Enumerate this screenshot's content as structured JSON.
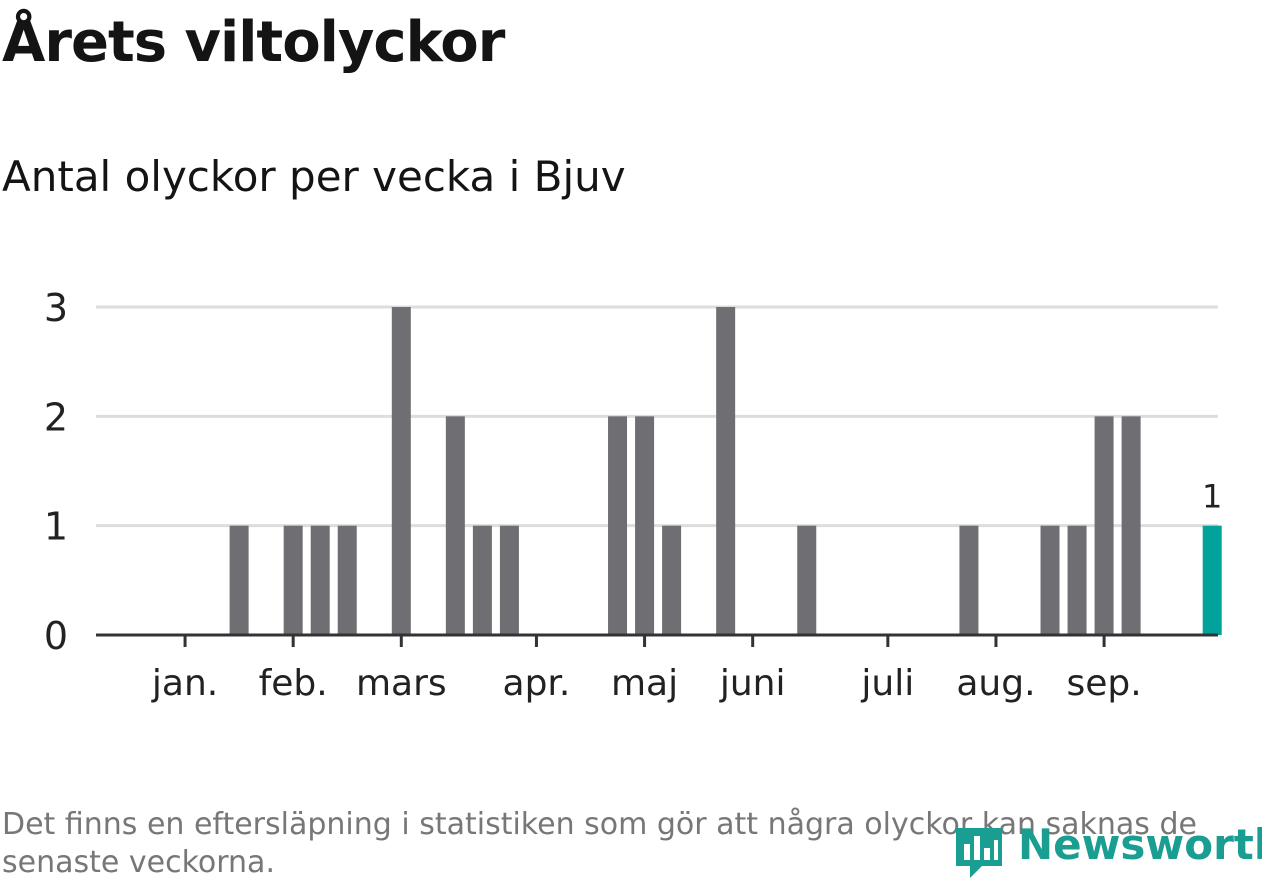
{
  "title": "Årets viltolyckor",
  "subtitle": "Antal olyckor per vecka i Bjuv",
  "footnote": "Det finns en eftersläpning i statistiken som gör att några olyckor kan saknas de senaste veckorna.",
  "logo": {
    "text": "Newsworthy",
    "icon": "newsworthy-logo-icon"
  },
  "colors": {
    "bar": "#6f6e73",
    "highlight": "#00a29a",
    "grid": "#dddddd",
    "axis": "#333333"
  },
  "chart_data": {
    "type": "bar",
    "title": "Årets viltolyckor",
    "subtitle": "Antal olyckor per vecka i Bjuv",
    "xlabel": "",
    "ylabel": "",
    "ylim": [
      0,
      3
    ],
    "yticks": [
      "0",
      "1",
      "2",
      "3"
    ],
    "grid": true,
    "month_labels": [
      "jan.",
      "feb.",
      "mars",
      "apr.",
      "maj",
      "juni",
      "juli",
      "aug.",
      "sep."
    ],
    "month_tick_weeks": [
      3,
      7,
      11,
      16,
      20,
      24,
      29,
      33,
      37
    ],
    "weeks": [
      1,
      2,
      3,
      4,
      5,
      6,
      7,
      8,
      9,
      10,
      11,
      12,
      13,
      14,
      15,
      16,
      17,
      18,
      19,
      20,
      21,
      22,
      23,
      24,
      25,
      26,
      27,
      28,
      29,
      30,
      31,
      32,
      33,
      34,
      35,
      36,
      37,
      38,
      39,
      40,
      41
    ],
    "values": [
      0,
      0,
      0,
      0,
      1,
      0,
      1,
      1,
      1,
      0,
      3,
      0,
      2,
      1,
      1,
      0,
      0,
      0,
      2,
      2,
      1,
      0,
      3,
      0,
      0,
      1,
      0,
      0,
      0,
      0,
      0,
      1,
      0,
      0,
      1,
      1,
      2,
      2,
      0,
      0,
      1
    ],
    "highlight_week": 41,
    "highlight_label": "1"
  }
}
